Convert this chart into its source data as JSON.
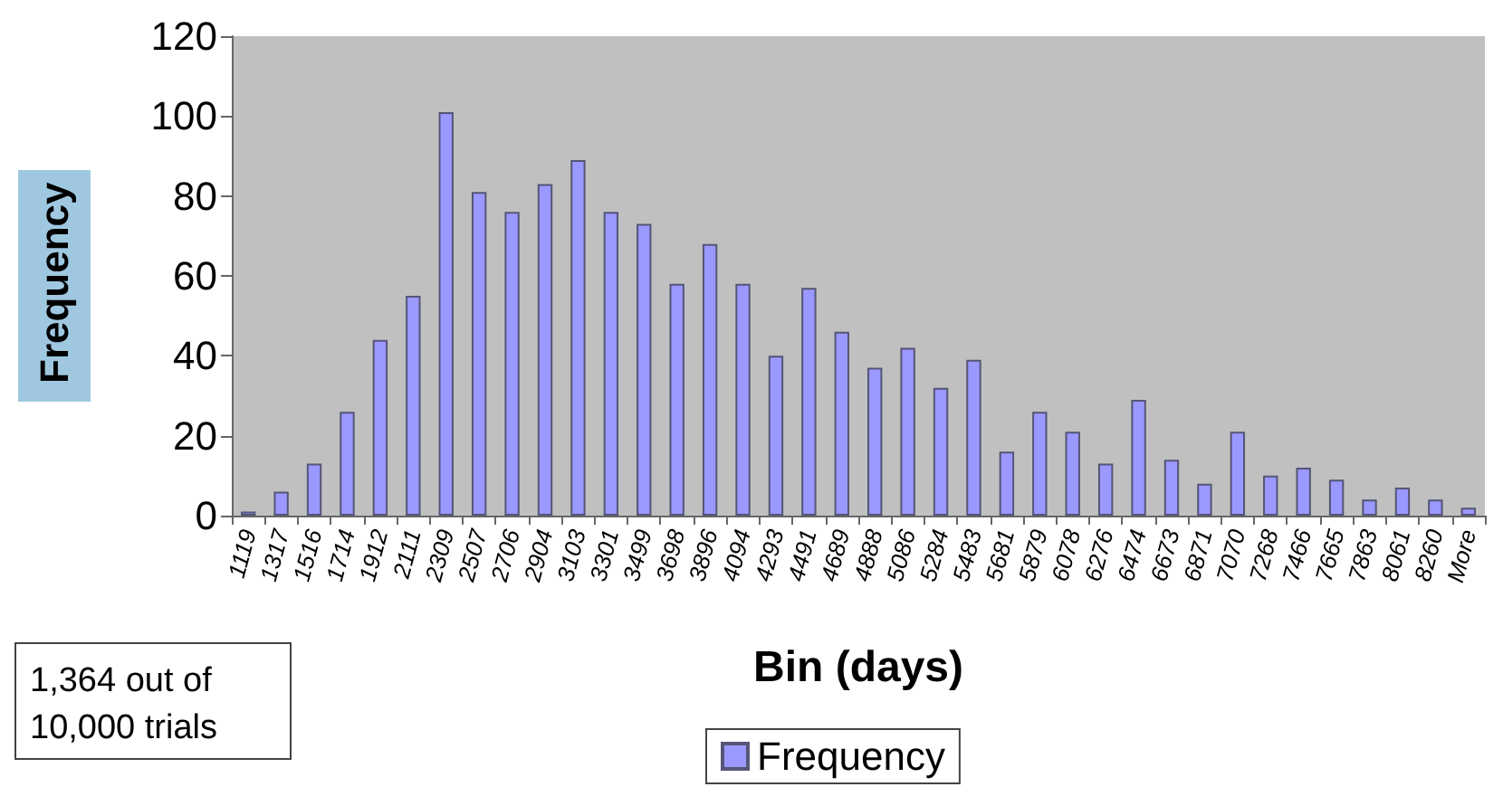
{
  "chart_data": {
    "type": "bar",
    "xlabel": "Bin (days)",
    "ylabel": "Frequency",
    "categories": [
      "1119",
      "1317",
      "1516",
      "1714",
      "1912",
      "2111",
      "2309",
      "2507",
      "2706",
      "2904",
      "3103",
      "3301",
      "3499",
      "3698",
      "3896",
      "4094",
      "4293",
      "4491",
      "4689",
      "4888",
      "5086",
      "5284",
      "5483",
      "5681",
      "5879",
      "6078",
      "6276",
      "6474",
      "6673",
      "6871",
      "7070",
      "7268",
      "7466",
      "7665",
      "7863",
      "8061",
      "8260",
      "More"
    ],
    "series": [
      {
        "name": "Frequency",
        "color": "#9999ff",
        "values": [
          1,
          6,
          13,
          26,
          44,
          55,
          101,
          81,
          76,
          83,
          89,
          76,
          73,
          58,
          68,
          58,
          40,
          57,
          46,
          37,
          42,
          32,
          39,
          16,
          26,
          21,
          13,
          29,
          14,
          8,
          21,
          10,
          12,
          9,
          4,
          7,
          4,
          2
        ]
      }
    ],
    "ylim": [
      0,
      120
    ],
    "yticks": [
      0,
      20,
      40,
      60,
      80,
      100,
      120
    ],
    "grid": false,
    "legend": "bottom",
    "annotations": [
      "1,364 out of\n10,000 trials"
    ]
  }
}
